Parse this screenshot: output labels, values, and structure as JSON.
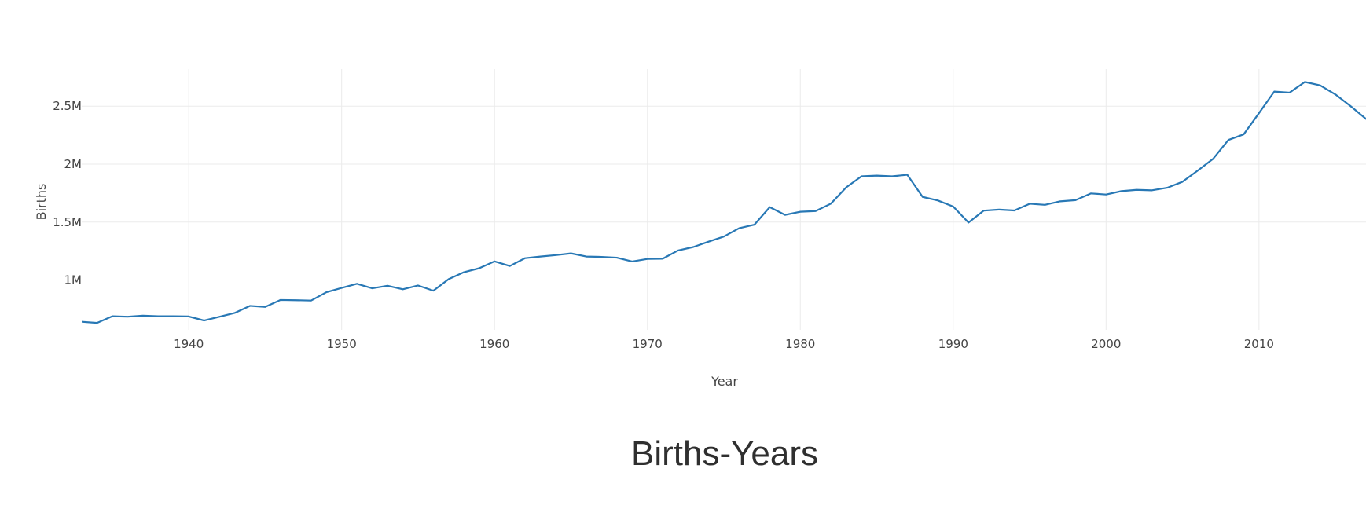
{
  "chart_data": {
    "type": "line",
    "title": "Births-Years",
    "xlabel": "Year",
    "ylabel": "Births",
    "xlim": [
      1933,
      2017
    ],
    "ylim": [
      570000,
      2820000
    ],
    "x_ticks": [
      1940,
      1950,
      1960,
      1970,
      1980,
      1990,
      2000,
      2010
    ],
    "x_tick_labels": [
      "1940",
      "1950",
      "1960",
      "1970",
      "1980",
      "1990",
      "2000",
      "2010"
    ],
    "y_ticks": [
      1000000,
      1500000,
      2000000,
      2500000
    ],
    "y_tick_labels": [
      "1M",
      "1.5M",
      "2M",
      "2.5M"
    ],
    "grid": true,
    "line_color": "#2878b5",
    "series": [
      {
        "x": [
          1933,
          1934,
          1935,
          1936,
          1937,
          1938,
          1939,
          1940,
          1941,
          1942,
          1943,
          1944,
          1945,
          1946,
          1947,
          1948,
          1949,
          1950,
          1951,
          1952,
          1953,
          1954,
          1955,
          1956,
          1957,
          1958,
          1959,
          1960,
          1961,
          1962,
          1963,
          1964,
          1965,
          1966,
          1967,
          1968,
          1969,
          1970,
          1971,
          1972,
          1973,
          1974,
          1975,
          1976,
          1977,
          1978,
          1979,
          1980,
          1981,
          1982,
          1983,
          1984,
          1985,
          1986,
          1987,
          1988,
          1989,
          1990,
          1991,
          1992,
          1993,
          1994,
          1995,
          1996,
          1997,
          1998,
          1999,
          2000,
          2001,
          2002,
          2003,
          2004,
          2005,
          2006,
          2007,
          2008,
          2009,
          2010,
          2011,
          2012,
          2013,
          2014,
          2015,
          2016,
          2017
        ],
        "values": [
          640000,
          630000,
          688000,
          684000,
          693000,
          688000,
          688000,
          686000,
          651000,
          683000,
          716000,
          777000,
          768000,
          828000,
          826000,
          823000,
          895000,
          932000,
          968000,
          929000,
          951000,
          920000,
          953000,
          908000,
          1008000,
          1068000,
          1102000,
          1161000,
          1121000,
          1189000,
          1203000,
          1215000,
          1230000,
          1203000,
          1200000,
          1193000,
          1160000,
          1182000,
          1184000,
          1255000,
          1285000,
          1331000,
          1375000,
          1447000,
          1478000,
          1629000,
          1562000,
          1589000,
          1595000,
          1659000,
          1799000,
          1895000,
          1901000,
          1895000,
          1908000,
          1717000,
          1686000,
          1634000,
          1496000,
          1599000,
          1608000,
          1600000,
          1658000,
          1649000,
          1679000,
          1689000,
          1747000,
          1738000,
          1767000,
          1778000,
          1774000,
          1796000,
          1848000,
          1945000,
          2046000,
          2209000,
          2257000,
          2440000,
          2626000,
          2617000,
          2709000,
          2680000,
          2601000,
          2500000,
          2390000
        ]
      }
    ]
  }
}
